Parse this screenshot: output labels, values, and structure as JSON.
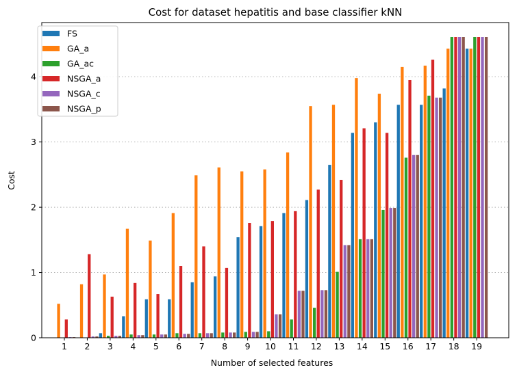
{
  "chart_data": {
    "type": "bar",
    "title": "Cost for dataset hepatitis and base classifier kNN",
    "xlabel": "Number of selected features",
    "ylabel": "Cost",
    "categories": [
      "1",
      "2",
      "3",
      "4",
      "5",
      "6",
      "7",
      "8",
      "9",
      "10",
      "11",
      "12",
      "13",
      "14",
      "15",
      "16",
      "17",
      "18",
      "19"
    ],
    "ylim": [
      0,
      4.83
    ],
    "yticks": [
      0,
      1,
      2,
      3,
      4
    ],
    "grid": "horizontal dotted",
    "legend_position": "top-left",
    "series": [
      {
        "name": "FS",
        "color": "#1f77b4",
        "values": [
          0,
          0,
          0.07,
          0.33,
          0.59,
          0.59,
          0.85,
          0.94,
          1.54,
          1.71,
          1.91,
          2.11,
          2.65,
          3.14,
          3.3,
          3.57,
          3.57,
          3.82,
          4.43
        ]
      },
      {
        "name": "GA_a",
        "color": "#ff7f0e",
        "values": [
          0.52,
          0.82,
          0.97,
          1.67,
          1.49,
          1.91,
          2.49,
          2.61,
          2.55,
          2.58,
          2.84,
          3.55,
          3.57,
          3.98,
          3.74,
          4.15,
          4.17,
          4.43,
          4.43
        ]
      },
      {
        "name": "GA_ac",
        "color": "#2ca02c",
        "values": [
          0.005,
          0.005,
          0.03,
          0.05,
          0.05,
          0.07,
          0.07,
          0.08,
          0.09,
          0.1,
          0.28,
          0.46,
          1.01,
          1.51,
          1.96,
          2.76,
          3.71,
          4.61,
          4.61
        ]
      },
      {
        "name": "NSGA_a",
        "color": "#d62728",
        "values": [
          0.28,
          1.28,
          0.63,
          0.84,
          0.67,
          1.1,
          1.4,
          1.07,
          1.76,
          1.79,
          1.94,
          2.27,
          2.42,
          3.21,
          3.14,
          3.95,
          4.26,
          4.61,
          4.61
        ]
      },
      {
        "name": "NSGA_c",
        "color": "#9467bd",
        "values": [
          0.01,
          0.02,
          0.03,
          0.04,
          0.05,
          0.06,
          0.07,
          0.08,
          0.09,
          0.36,
          0.72,
          0.73,
          1.42,
          1.51,
          1.99,
          2.8,
          3.68,
          4.61,
          4.61
        ]
      },
      {
        "name": "NSGA_p",
        "color": "#8c564b",
        "values": [
          0.01,
          0.02,
          0.03,
          0.04,
          0.05,
          0.06,
          0.07,
          0.08,
          0.09,
          0.36,
          0.72,
          0.73,
          1.42,
          1.51,
          1.99,
          2.8,
          3.68,
          4.61,
          4.61
        ]
      }
    ]
  }
}
